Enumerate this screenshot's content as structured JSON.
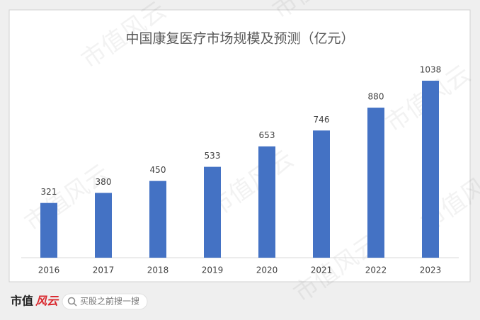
{
  "chart_data": {
    "type": "bar",
    "title": "中国康复医疗市场规模及预测（亿元）",
    "categories": [
      "2016",
      "2017",
      "2018",
      "2019",
      "2020",
      "2021",
      "2022",
      "2023"
    ],
    "values": [
      321,
      380,
      450,
      533,
      653,
      746,
      880,
      1038
    ],
    "color": "#4472c4"
  },
  "watermark": "市值风云",
  "footer": {
    "logo_main": "市值",
    "logo_accent": "风云",
    "search_placeholder": "买股之前搜一搜"
  }
}
